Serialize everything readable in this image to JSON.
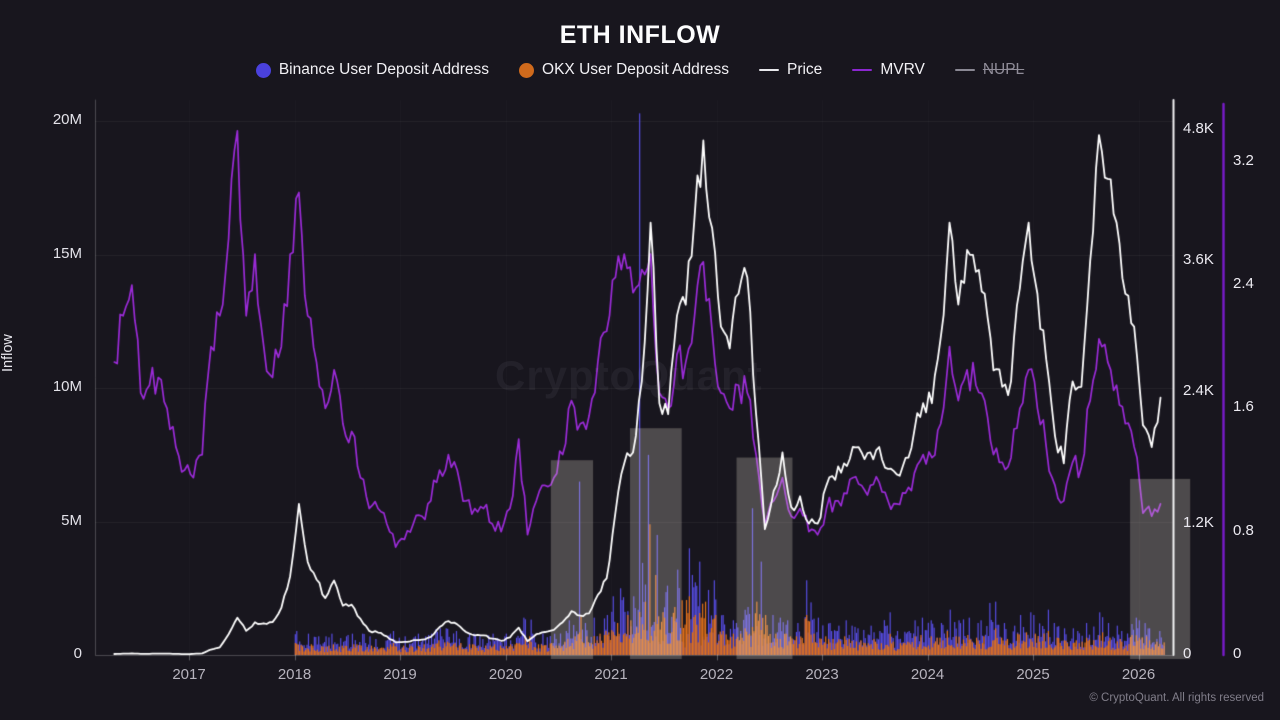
{
  "title": "ETH INFLOW",
  "watermark": "CryptoQuant",
  "footer": "© CryptoQuant. All rights reserved",
  "legend": {
    "items": [
      {
        "label": "Binance User Deposit Address",
        "marker": "circle",
        "color": "#4a41dd",
        "disabled": false
      },
      {
        "label": "OKX User Deposit Address",
        "marker": "circle",
        "color": "#cf6a1c",
        "disabled": false
      },
      {
        "label": "Price",
        "marker": "line",
        "color": "#e8e8ec",
        "disabled": false
      },
      {
        "label": "MVRV",
        "marker": "line",
        "color": "#8b27d0",
        "disabled": false
      },
      {
        "label": "NUPL",
        "marker": "line",
        "color": "#8a8894",
        "disabled": true
      }
    ]
  },
  "chart_data": {
    "type": "mixed",
    "title": "ETH INFLOW",
    "ylabel": "Inflow",
    "x_start": 2016.292,
    "x_step": 0.0833333,
    "x_axis": {
      "ticks": [
        2017,
        2018,
        2019,
        2020,
        2021,
        2022,
        2023,
        2024,
        2025,
        2026
      ]
    },
    "y_axes": {
      "inflow": {
        "title": "Inflow",
        "max": 20.8,
        "unit": "M",
        "ticks": [
          {
            "label": "20M",
            "v": 20
          },
          {
            "label": "15M",
            "v": 15
          },
          {
            "label": "10M",
            "v": 10
          },
          {
            "label": "5M",
            "v": 5
          },
          {
            "label": "0",
            "v": 0
          }
        ]
      },
      "price": {
        "title": "Price",
        "max": 5070,
        "ticks": [
          {
            "label": "4.8K",
            "v": 4800
          },
          {
            "label": "3.6K",
            "v": 3600
          },
          {
            "label": "2.4K",
            "v": 2400
          },
          {
            "label": "1.2K",
            "v": 1200
          },
          {
            "label": "0",
            "v": 0
          }
        ]
      },
      "mvrv": {
        "title": "MVRV",
        "max": 3.6,
        "ticks": [
          {
            "label": "3.2",
            "v": 3.2
          },
          {
            "label": "2.4",
            "v": 2.4
          },
          {
            "label": "1.6",
            "v": 1.6
          },
          {
            "label": "0.8",
            "v": 0.8
          },
          {
            "label": "0",
            "v": 0
          }
        ]
      }
    },
    "highlights": [
      {
        "from": 2020.43,
        "to": 2020.83,
        "top": 7.3
      },
      {
        "from": 2021.18,
        "to": 2021.67,
        "top": 8.5
      },
      {
        "from": 2022.19,
        "to": 2022.72,
        "top": 7.4
      },
      {
        "from": 2025.92,
        "to": 2026.49,
        "top": 6.6
      }
    ],
    "series": [
      {
        "name": "Binance User Deposit Address",
        "type": "bar",
        "axis": "inflow",
        "color": "#564ce0",
        "unit": "M ETH",
        "values": [
          null,
          null,
          null,
          null,
          null,
          null,
          null,
          null,
          null,
          null,
          null,
          null,
          null,
          null,
          null,
          null,
          null,
          null,
          null,
          null,
          null,
          0.9,
          0.8,
          0.7,
          0.7,
          0.8,
          0.7,
          0.8,
          0.8,
          0.7,
          0.6,
          0.8,
          0.9,
          0.7,
          0.7,
          0.8,
          0.8,
          1.0,
          1.0,
          0.9,
          0.8,
          0.8,
          0.7,
          0.8,
          0.7,
          0.8,
          0.9,
          1.4,
          0.8,
          0.8,
          0.8,
          0.9,
          1.3,
          6.5,
          1.2,
          1.4,
          1.5,
          2.2,
          2.5,
          2.2,
          20.3,
          7.5,
          4.5,
          2.6,
          3.2,
          4.0,
          3.0,
          3.5,
          2.8,
          1.5,
          1.3,
          1.2,
          1.8,
          5.5,
          3.5,
          1.5,
          1.4,
          1.3,
          1.2,
          2.8,
          1.4,
          1.2,
          1.1,
          1.3,
          1.1,
          1.0,
          1.1,
          0.9,
          1.6,
          0.9,
          0.9,
          1.3,
          1.4,
          1.3,
          1.2,
          1.7,
          1.3,
          1.4,
          1.2,
          1.3,
          2.0,
          1.2,
          1.1,
          1.5,
          1.6,
          1.5,
          1.7,
          1.2,
          1.0,
          1.0,
          0.9,
          1.2,
          1.6,
          1.2,
          1.1,
          0.9,
          1.4,
          1.3,
          1.0,
          0.9
        ]
      },
      {
        "name": "OKX User Deposit Address",
        "type": "bar",
        "axis": "inflow",
        "color": "#e2711a",
        "unit": "M ETH",
        "values": [
          null,
          null,
          null,
          null,
          null,
          null,
          null,
          null,
          null,
          null,
          null,
          null,
          null,
          null,
          null,
          null,
          null,
          null,
          null,
          null,
          null,
          0.45,
          0.4,
          0.35,
          0.35,
          0.4,
          0.35,
          0.4,
          0.4,
          0.35,
          0.3,
          0.4,
          0.45,
          0.35,
          0.35,
          0.4,
          0.4,
          0.55,
          0.5,
          0.45,
          0.4,
          0.4,
          0.35,
          0.4,
          0.35,
          0.4,
          0.45,
          0.7,
          0.4,
          0.4,
          0.45,
          0.5,
          0.7,
          1.5,
          0.7,
          0.8,
          0.9,
          1.2,
          1.5,
          1.3,
          2.0,
          4.9,
          3.0,
          1.4,
          1.8,
          2.2,
          1.5,
          2.0,
          1.5,
          0.9,
          0.8,
          0.8,
          1.0,
          2.0,
          1.5,
          0.8,
          0.8,
          0.7,
          0.7,
          1.5,
          0.8,
          0.7,
          0.6,
          0.7,
          0.6,
          0.55,
          0.6,
          0.5,
          0.8,
          0.5,
          0.5,
          0.7,
          0.75,
          0.7,
          0.65,
          0.9,
          0.7,
          0.75,
          0.65,
          0.7,
          1.0,
          0.65,
          0.6,
          0.8,
          0.85,
          0.8,
          0.9,
          0.65,
          0.55,
          0.55,
          0.5,
          0.65,
          0.85,
          0.65,
          0.6,
          0.5,
          0.75,
          0.7,
          0.55,
          0.5
        ]
      },
      {
        "name": "Price",
        "type": "line",
        "axis": "price",
        "color": "#ffffff",
        "unit": "USD",
        "values": [
          9,
          12,
          14,
          11,
          11,
          13,
          12,
          10,
          8,
          10,
          15,
          50,
          70,
          190,
          340,
          220,
          300,
          290,
          300,
          430,
          720,
          1380,
          850,
          690,
          520,
          680,
          450,
          460,
          330,
          220,
          205,
          170,
          115,
          120,
          135,
          140,
          165,
          255,
          310,
          280,
          210,
          180,
          180,
          150,
          130,
          160,
          250,
          125,
          190,
          210,
          230,
          300,
          400,
          360,
          380,
          550,
          700,
          1300,
          1750,
          1850,
          2500,
          3950,
          2300,
          2200,
          3100,
          3200,
          4000,
          4700,
          3900,
          3000,
          2800,
          3300,
          3450,
          2200,
          1150,
          1500,
          1850,
          1350,
          1450,
          1200,
          1200,
          1550,
          1600,
          1750,
          1900,
          1850,
          1850,
          1900,
          1700,
          1650,
          1800,
          2050,
          2300,
          2300,
          2900,
          3950,
          3200,
          3700,
          3500,
          3300,
          2600,
          2450,
          2500,
          3350,
          3950,
          3300,
          2700,
          2000,
          1750,
          2500,
          2450,
          3600,
          4750,
          4350,
          3950,
          3300,
          3000,
          2100,
          1900,
          2350
        ]
      },
      {
        "name": "MVRV",
        "type": "line",
        "axis": "mvrv",
        "color": "#9b2bd8",
        "unit": "ratio",
        "values": [
          1.9,
          2.2,
          2.4,
          1.7,
          1.75,
          1.8,
          1.6,
          1.35,
          1.2,
          1.15,
          1.3,
          2.0,
          2.2,
          2.7,
          3.4,
          2.2,
          2.6,
          2.0,
          1.8,
          2.0,
          2.6,
          3.0,
          2.2,
          1.9,
          1.6,
          1.85,
          1.5,
          1.45,
          1.15,
          0.95,
          0.95,
          0.85,
          0.7,
          0.75,
          0.85,
          0.9,
          1.0,
          1.2,
          1.3,
          1.2,
          1.0,
          0.95,
          0.95,
          0.85,
          0.8,
          0.95,
          1.4,
          0.78,
          1.0,
          1.1,
          1.15,
          1.3,
          1.65,
          1.5,
          1.55,
          1.9,
          2.1,
          2.45,
          2.6,
          2.35,
          2.5,
          2.6,
          1.7,
          1.6,
          1.95,
          1.9,
          2.2,
          2.55,
          2.1,
          1.7,
          1.6,
          1.75,
          1.7,
          1.3,
          0.85,
          1.0,
          1.15,
          0.9,
          0.95,
          0.8,
          0.78,
          0.95,
          1.0,
          1.05,
          1.15,
          1.1,
          1.1,
          1.12,
          1.0,
          0.98,
          1.05,
          1.18,
          1.3,
          1.28,
          1.5,
          2.0,
          1.65,
          1.85,
          1.75,
          1.65,
          1.3,
          1.25,
          1.28,
          1.6,
          1.85,
          1.6,
          1.35,
          1.1,
          1.0,
          1.25,
          1.22,
          1.65,
          2.05,
          1.9,
          1.75,
          1.5,
          1.35,
          0.92,
          0.9,
          0.98
        ]
      },
      {
        "name": "NUPL",
        "type": "line",
        "axis": "none",
        "color": "#8a8894",
        "hidden": true,
        "values": []
      }
    ]
  }
}
